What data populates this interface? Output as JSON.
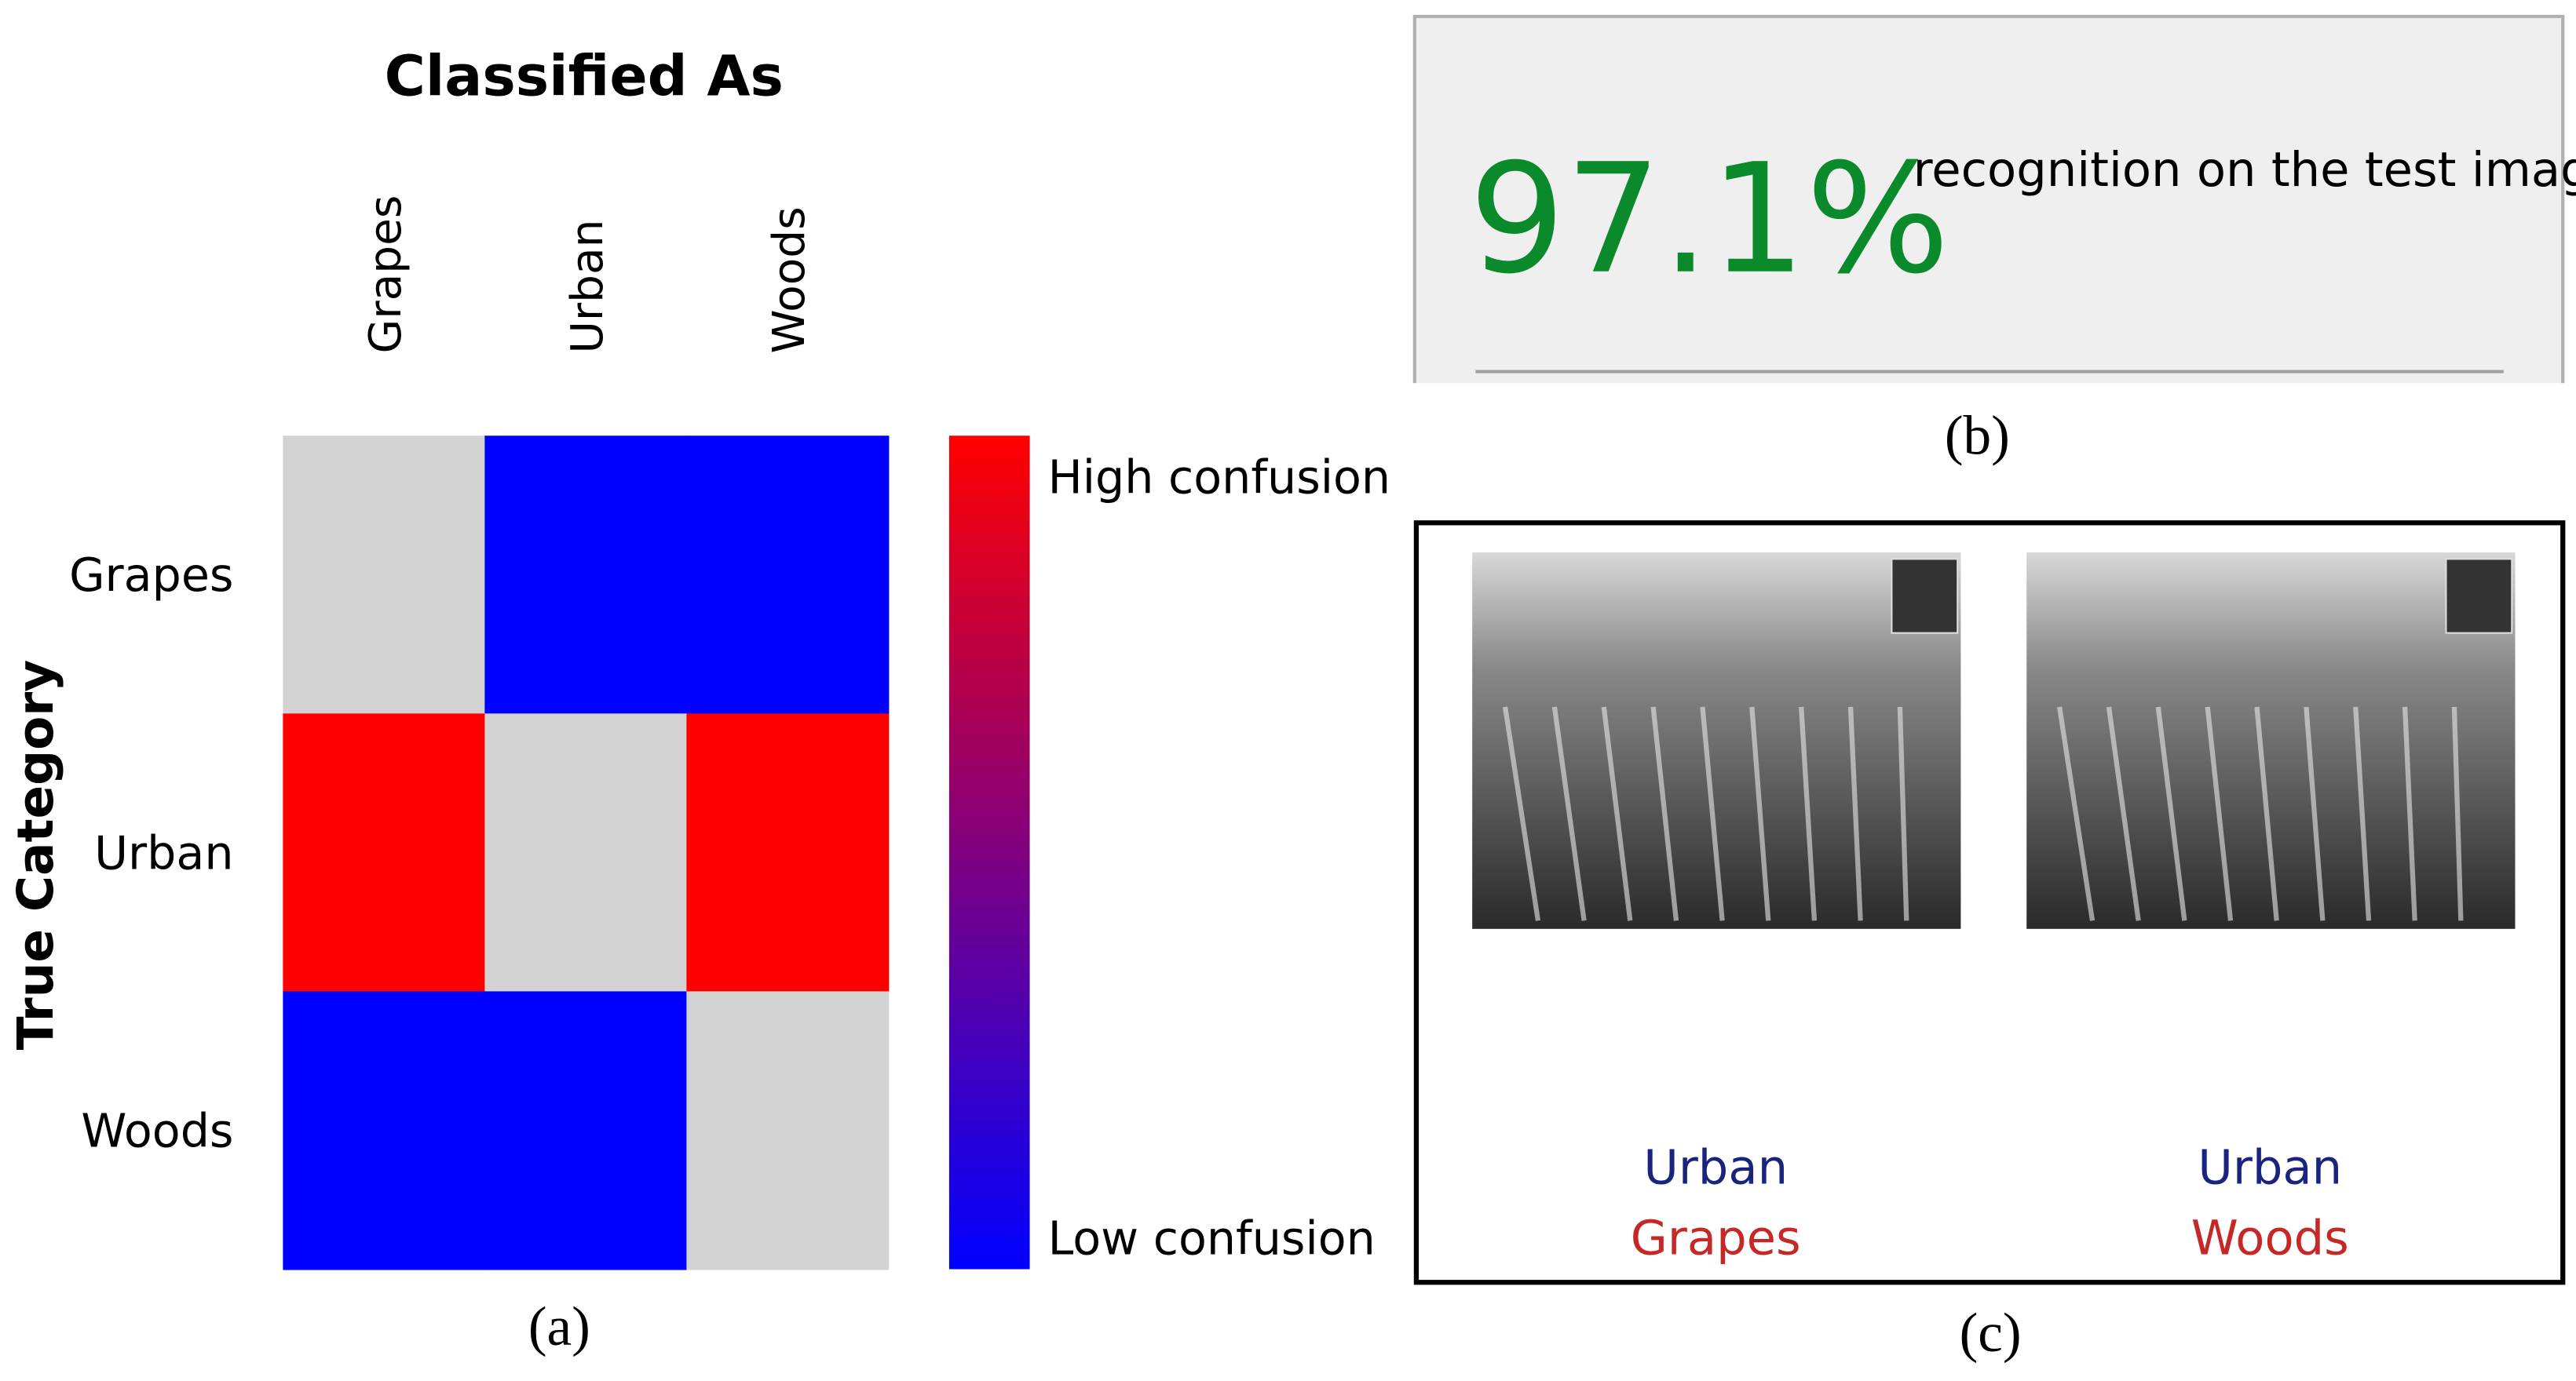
{
  "panel_a": {
    "title": "Classified As",
    "y_label": "True Category",
    "categories": [
      "Grapes",
      "Urban",
      "Woods"
    ],
    "cell_colors": [
      [
        "#d3d3d3",
        "#0000ff",
        "#0000ff"
      ],
      [
        "#ff0000",
        "#d3d3d3",
        "#ff0000"
      ],
      [
        "#0000ff",
        "#0000ff",
        "#d3d3d3"
      ]
    ],
    "colorbar": {
      "high_label": "High confusion",
      "low_label": "Low confusion",
      "high_color": "#ff0000",
      "low_color": "#0000ff"
    },
    "caption": "(a)"
  },
  "panel_b": {
    "accuracy": "97.1%",
    "text": "recognition on the test images",
    "caption": "(b)"
  },
  "panel_c": {
    "items": [
      {
        "true": "Urban",
        "predicted": "Grapes"
      },
      {
        "true": "Urban",
        "predicted": "Woods"
      }
    ],
    "caption": "(c)"
  }
}
